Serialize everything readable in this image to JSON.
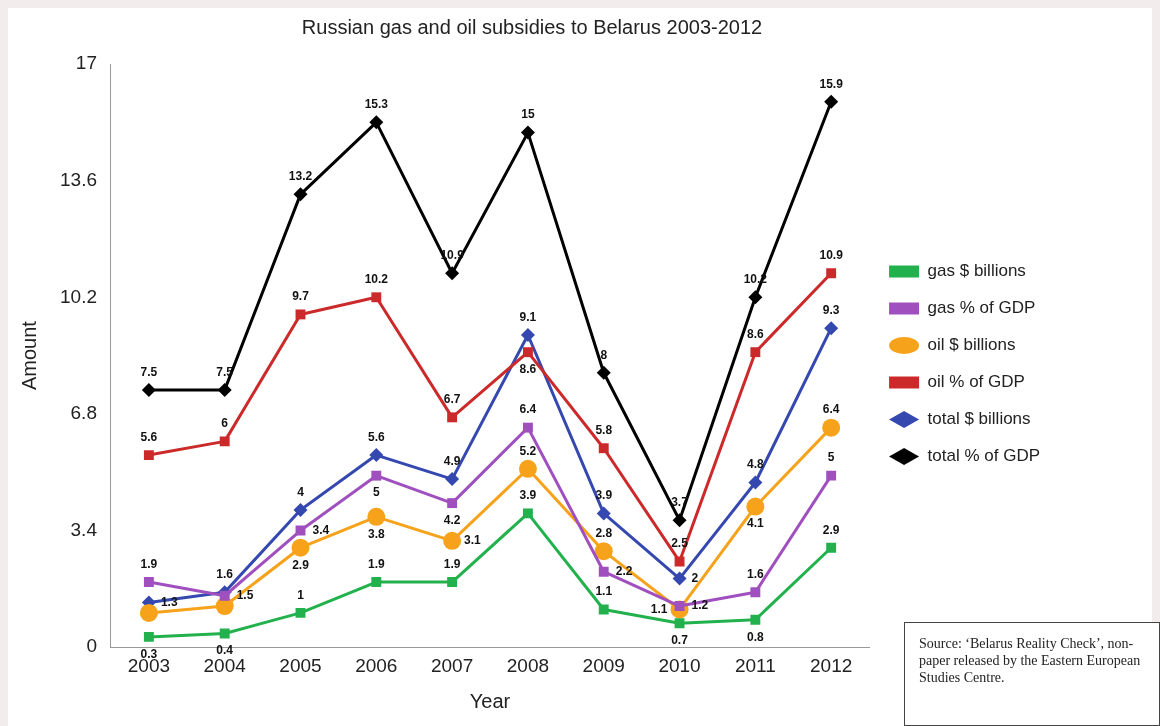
{
  "chart_data": {
    "type": "line",
    "title": "Russian gas and oil subsidies to Belarus 2003-2012",
    "xlabel": "Year",
    "ylabel": "Amount",
    "categories": [
      "2003",
      "2004",
      "2005",
      "2006",
      "2007",
      "2008",
      "2009",
      "2010",
      "2011",
      "2012"
    ],
    "ylim": [
      0,
      17
    ],
    "yticks": [
      0,
      3.4,
      6.8,
      10.2,
      13.6,
      17
    ],
    "grid": false,
    "legend": "right",
    "line_style": "solid",
    "series": [
      {
        "name": "gas $ billions",
        "color": "#22b14c",
        "marker": "square",
        "values": [
          0.3,
          0.4,
          1,
          1.9,
          1.9,
          3.9,
          1.1,
          0.7,
          0.8,
          2.9
        ],
        "value_labels": [
          "0.3",
          "0.4",
          "1",
          "1.9",
          "1.9",
          "3.9",
          "1.1",
          "0.7",
          "0.8",
          "2.9"
        ]
      },
      {
        "name": "gas % of GDP",
        "color": "#a04fbf",
        "marker": "square",
        "values": [
          1.9,
          1.5,
          3.4,
          5,
          4.2,
          6.4,
          2.2,
          1.2,
          1.6,
          5
        ],
        "value_labels": [
          "1.9",
          "1.5",
          "3.4",
          "5",
          "4.2",
          "6.4",
          "2.2",
          "1.2",
          "1.6",
          "5"
        ]
      },
      {
        "name": "oil $ billions",
        "color": "#f7a21b",
        "marker": "circle",
        "values": [
          1,
          1.2,
          2.9,
          3.8,
          3.1,
          5.2,
          2.8,
          1.1,
          4.1,
          6.4
        ],
        "value_labels": [
          null,
          null,
          "2.9",
          "3.8",
          "3.1",
          "5.2",
          "2.8",
          "1.1",
          "4.1",
          "6.4"
        ]
      },
      {
        "name": "oil % of GDP",
        "color": "#cc2a2a",
        "marker": "square",
        "values": [
          5.6,
          6,
          9.7,
          10.2,
          6.7,
          8.6,
          5.8,
          2.5,
          8.6,
          10.9
        ],
        "value_labels": [
          "5.6",
          "6",
          "9.7",
          "10.2",
          "6.7",
          "8.6",
          "5.8",
          "2.5",
          "8.6",
          "10.9"
        ]
      },
      {
        "name": "total $ billions",
        "color": "#3548b0",
        "marker": "diamond",
        "values": [
          1.3,
          1.6,
          4,
          5.6,
          4.9,
          9.1,
          3.9,
          2,
          4.8,
          9.3
        ],
        "value_labels": [
          "1.3",
          "1.6",
          "4",
          "5.6",
          "4.9",
          "9.1",
          "3.9",
          "2",
          "4.8",
          "9.3"
        ]
      },
      {
        "name": "total % of GDP",
        "color": "#000000",
        "marker": "diamond",
        "values": [
          7.5,
          7.5,
          13.2,
          15.3,
          10.9,
          15,
          8,
          3.7,
          10.2,
          15.9
        ],
        "value_labels": [
          "7.5",
          "7.5",
          "13.2",
          "15.3",
          "10.9",
          "15",
          "8",
          "3.7",
          "10.2",
          "15.9"
        ]
      }
    ],
    "annotations": [
      "Source:  ‘Belarus Reality Check’, non-paper released by the Eastern European Studies Centre."
    ]
  }
}
